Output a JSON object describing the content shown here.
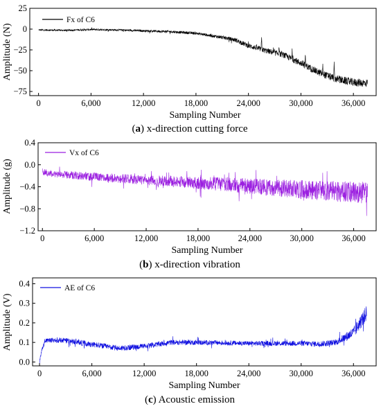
{
  "chart_data": [
    {
      "type": "line",
      "series": [
        {
          "name": "Fx of C6",
          "color": "#000000"
        }
      ],
      "xlabel": "Sampling Number",
      "ylabel": "Amplitude (N)",
      "xlim": [
        -1000,
        38600
      ],
      "ylim": [
        -80,
        25
      ],
      "xticks": [
        0,
        6000,
        12000,
        18000,
        24000,
        30000,
        36000
      ],
      "xtick_labels": [
        "0",
        "6,000",
        "12,000",
        "18,000",
        "24,000",
        "30,000",
        "36,000"
      ],
      "yticks": [
        25,
        0,
        -25,
        -50,
        -75
      ],
      "ytick_labels": [
        "25",
        "0",
        "−25",
        "−50",
        "−75"
      ],
      "caption_letter": "a",
      "caption_text": " x-direction cutting force",
      "trend": [
        [
          0,
          -1
        ],
        [
          3000,
          -1.5
        ],
        [
          6000,
          -0.5
        ],
        [
          9000,
          -1
        ],
        [
          12000,
          -2
        ],
        [
          15000,
          -3
        ],
        [
          18000,
          -5
        ],
        [
          21000,
          -10
        ],
        [
          22500,
          -13
        ],
        [
          24000,
          -20
        ],
        [
          26000,
          -26
        ],
        [
          28000,
          -31
        ],
        [
          30000,
          -41
        ],
        [
          32000,
          -52
        ],
        [
          34000,
          -60
        ],
        [
          36000,
          -64
        ],
        [
          37600,
          -65
        ]
      ],
      "noise": [
        [
          0,
          1
        ],
        [
          10000,
          1.2
        ],
        [
          20000,
          1.8
        ],
        [
          24000,
          3
        ],
        [
          30000,
          4
        ],
        [
          37600,
          5
        ]
      ],
      "spikes": [
        [
          25500,
          14
        ],
        [
          27500,
          12
        ],
        [
          29000,
          10
        ],
        [
          30500,
          11
        ],
        [
          32500,
          9
        ],
        [
          33800,
          16
        ]
      ]
    },
    {
      "type": "line",
      "series": [
        {
          "name": "Vx of C6",
          "color": "#9b1fe0"
        }
      ],
      "xlabel": "Sampling Number",
      "ylabel": "Amplitude (g)",
      "xlim": [
        -500,
        38600
      ],
      "ylim": [
        -1.2,
        0.4
      ],
      "xticks": [
        0,
        6000,
        12000,
        18000,
        24000,
        30000,
        36000
      ],
      "xtick_labels": [
        "0",
        "6,000",
        "12,000",
        "18,000",
        "24,000",
        "30,000",
        "36,000"
      ],
      "yticks": [
        0.4,
        0.0,
        -0.4,
        -0.8,
        -1.2
      ],
      "ytick_labels": [
        "0.4",
        "0.0",
        "−0.4",
        "−0.8",
        "−1.2"
      ],
      "caption_letter": "b",
      "caption_text": " x-direction vibration",
      "trend": [
        [
          0,
          -0.12
        ],
        [
          1000,
          -0.16
        ],
        [
          6000,
          -0.22
        ],
        [
          12000,
          -0.28
        ],
        [
          18000,
          -0.33
        ],
        [
          24000,
          -0.39
        ],
        [
          30000,
          -0.45
        ],
        [
          36000,
          -0.5
        ],
        [
          37600,
          -0.51
        ]
      ],
      "noise": [
        [
          0,
          0.06
        ],
        [
          12000,
          0.09
        ],
        [
          24000,
          0.14
        ],
        [
          30000,
          0.17
        ],
        [
          37600,
          0.2
        ]
      ],
      "spikes": []
    },
    {
      "type": "line",
      "series": [
        {
          "name": "AE of C6",
          "color": "#1010e0"
        }
      ],
      "xlabel": "Sampling Number",
      "ylabel": "Amplitude (V)",
      "xlim": [
        -800,
        38600
      ],
      "ylim": [
        -0.02,
        0.43
      ],
      "xticks": [
        0,
        6000,
        12000,
        18000,
        24000,
        30000,
        36000
      ],
      "xtick_labels": [
        "0",
        "6,000",
        "12,000",
        "18,000",
        "24,000",
        "30,000",
        "36,000"
      ],
      "yticks": [
        0.0,
        0.1,
        0.2,
        0.3,
        0.4
      ],
      "ytick_labels": [
        "0.0",
        "0.1",
        "0.2",
        "0.3",
        "0.4"
      ],
      "caption_letter": "c",
      "caption_text": " Acoustic emission",
      "trend": [
        [
          0,
          0.0
        ],
        [
          200,
          0.05
        ],
        [
          600,
          0.11
        ],
        [
          3000,
          0.11
        ],
        [
          6000,
          0.09
        ],
        [
          9000,
          0.07
        ],
        [
          12000,
          0.08
        ],
        [
          15000,
          0.1
        ],
        [
          18000,
          0.1
        ],
        [
          24000,
          0.095
        ],
        [
          30000,
          0.095
        ],
        [
          32000,
          0.092
        ],
        [
          34000,
          0.1
        ],
        [
          36000,
          0.15
        ],
        [
          37500,
          0.25
        ]
      ],
      "noise": [
        [
          0,
          0.01
        ],
        [
          3000,
          0.015
        ],
        [
          24000,
          0.012
        ],
        [
          34000,
          0.015
        ],
        [
          37500,
          0.04
        ]
      ],
      "spikes": []
    }
  ]
}
